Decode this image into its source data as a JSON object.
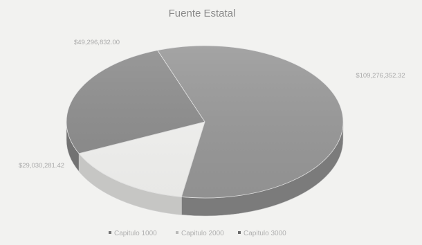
{
  "chart_data": {
    "type": "pie",
    "title": "Fuente Estatal",
    "three_d": true,
    "legend_position": "bottom",
    "slices": [
      {
        "name": "Capitulo 1000",
        "value": 109276352.32,
        "label": "$109,276,352.32",
        "color": "#9a9a9a"
      },
      {
        "name": "Capitulo 2000",
        "value": 29030281.42,
        "label": "$29,030,281.42",
        "color": "#f7f7f5"
      },
      {
        "name": "Capitulo 3000",
        "value": 49296832.0,
        "label": "$49,296,832.00",
        "color": "#8e8e8e"
      }
    ]
  }
}
